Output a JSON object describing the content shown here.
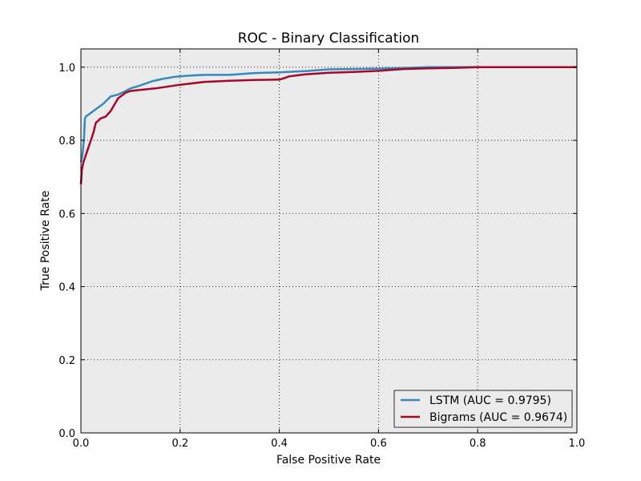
{
  "chart_data": {
    "type": "line",
    "title": "ROC - Binary Classification",
    "xlabel": "False Positive Rate",
    "ylabel": "True Positive Rate",
    "xlim": [
      0.0,
      1.0
    ],
    "ylim": [
      0.0,
      1.05
    ],
    "xticks": [
      "0.0",
      "0.2",
      "0.4",
      "0.6",
      "0.8",
      "1.0"
    ],
    "yticks": [
      "0.0",
      "0.2",
      "0.4",
      "0.6",
      "0.8",
      "1.0"
    ],
    "grid": true,
    "legend_position": "lower-right",
    "background_color": "#ebebeb",
    "series": [
      {
        "name": "LSTM (AUC = 0.9795)",
        "color": "#348abd",
        "x": [
          0.0,
          0.003,
          0.006,
          0.008,
          0.01,
          0.03,
          0.045,
          0.06,
          0.075,
          0.09,
          0.1,
          0.115,
          0.13,
          0.145,
          0.165,
          0.19,
          0.22,
          0.25,
          0.3,
          0.35,
          0.4,
          0.45,
          0.5,
          0.55,
          0.6,
          0.65,
          0.7,
          0.8,
          0.9,
          1.0
        ],
        "y": [
          0.74,
          0.76,
          0.8,
          0.86,
          0.865,
          0.885,
          0.9,
          0.92,
          0.925,
          0.935,
          0.942,
          0.948,
          0.955,
          0.962,
          0.968,
          0.974,
          0.977,
          0.979,
          0.979,
          0.984,
          0.986,
          0.989,
          0.994,
          0.995,
          0.996,
          0.998,
          1.0,
          1.0,
          1.0,
          1.0
        ]
      },
      {
        "name": "Bigrams (AUC = 0.9674)",
        "color": "#a60628",
        "x": [
          0.0,
          0.002,
          0.005,
          0.01,
          0.015,
          0.02,
          0.025,
          0.03,
          0.04,
          0.05,
          0.06,
          0.075,
          0.09,
          0.1,
          0.12,
          0.15,
          0.2,
          0.25,
          0.3,
          0.35,
          0.4,
          0.41,
          0.42,
          0.45,
          0.5,
          0.55,
          0.6,
          0.65,
          0.7,
          0.75,
          0.8,
          0.85,
          1.0
        ],
        "y": [
          0.68,
          0.72,
          0.74,
          0.76,
          0.78,
          0.8,
          0.82,
          0.848,
          0.86,
          0.865,
          0.88,
          0.915,
          0.93,
          0.935,
          0.938,
          0.942,
          0.952,
          0.96,
          0.963,
          0.965,
          0.966,
          0.97,
          0.975,
          0.98,
          0.985,
          0.987,
          0.99,
          0.995,
          0.997,
          0.998,
          1.0,
          1.0,
          1.0
        ]
      }
    ]
  }
}
